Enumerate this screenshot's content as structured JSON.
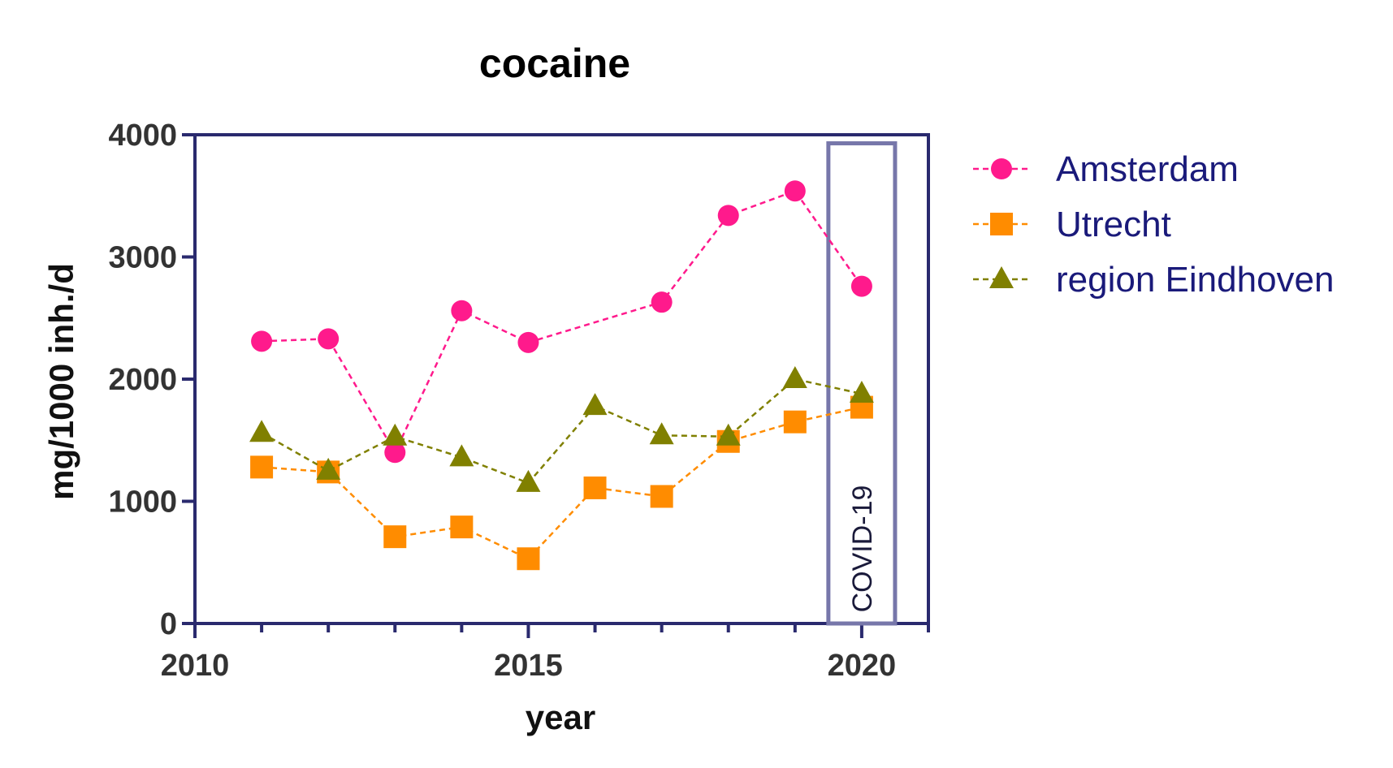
{
  "chart_data": {
    "type": "line",
    "title": "cocaine",
    "xlabel": "year",
    "ylabel": "mg/1000 inh./d",
    "xlim": [
      2010,
      2021
    ],
    "ylim": [
      0,
      4000
    ],
    "xticks": [
      2010,
      2015,
      2020
    ],
    "xticks_minor": [
      2011,
      2012,
      2013,
      2014,
      2016,
      2017,
      2018,
      2019,
      2021
    ],
    "yticks": [
      0,
      1000,
      2000,
      3000,
      4000
    ],
    "grid": false,
    "legend_position": "right",
    "series": [
      {
        "name": "Amsterdam",
        "color": "#ff1a8c",
        "marker": "circle",
        "x": [
          2011,
          2012,
          2013,
          2014,
          2015,
          2017,
          2018,
          2019,
          2020
        ],
        "y": [
          2310,
          2330,
          1400,
          2560,
          2300,
          2630,
          3340,
          3540,
          2760
        ]
      },
      {
        "name": "Utrecht",
        "color": "#ff8c00",
        "marker": "square",
        "x": [
          2011,
          2012,
          2013,
          2014,
          2015,
          2016,
          2017,
          2018,
          2019,
          2020
        ],
        "y": [
          1280,
          1240,
          710,
          790,
          530,
          1110,
          1040,
          1490,
          1650,
          1770
        ]
      },
      {
        "name": "region Eindhoven",
        "color": "#808000",
        "marker": "triangle",
        "x": [
          2011,
          2012,
          2013,
          2014,
          2015,
          2016,
          2017,
          2018,
          2019,
          2020
        ],
        "y": [
          1560,
          1250,
          1530,
          1360,
          1150,
          1780,
          1540,
          1530,
          2000,
          1880
        ]
      }
    ],
    "annotations": [
      {
        "text": "COVID-19",
        "x_range": [
          2019.5,
          2020.5
        ],
        "y_range": [
          0,
          3930
        ],
        "color": "#7777aa"
      }
    ]
  }
}
